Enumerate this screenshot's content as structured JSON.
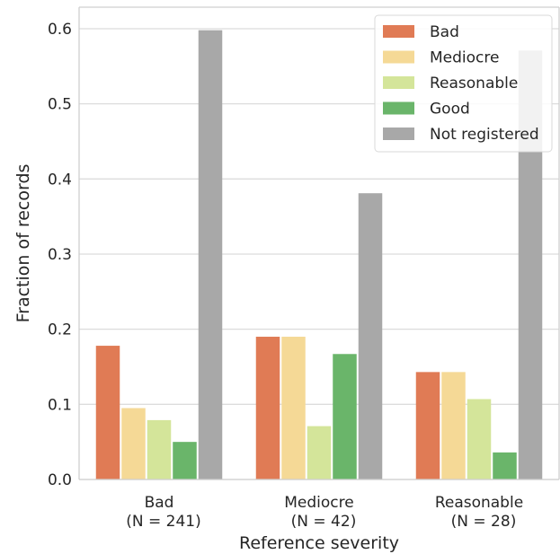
{
  "chart_data": {
    "type": "bar",
    "title": "",
    "xlabel": "Reference severity",
    "ylabel": "Fraction of records",
    "ylim": [
      0,
      0.63
    ],
    "yticks": [
      "0.0",
      "0.1",
      "0.2",
      "0.3",
      "0.4",
      "0.5",
      "0.6"
    ],
    "grid": "horizontal",
    "legend_position": "top-right",
    "categories": [
      {
        "line1": "Bad",
        "line2": "(N = 241)"
      },
      {
        "line1": "Mediocre",
        "line2": "(N = 42)"
      },
      {
        "line1": "Reasonable",
        "line2": "(N = 28)"
      }
    ],
    "series": [
      {
        "name": "Bad",
        "color": "#e07b55",
        "values": [
          0.178,
          0.19,
          0.143
        ]
      },
      {
        "name": "Mediocre",
        "color": "#f5d996",
        "values": [
          0.095,
          0.19,
          0.143
        ]
      },
      {
        "name": "Reasonable",
        "color": "#d4e59a",
        "values": [
          0.079,
          0.071,
          0.107
        ]
      },
      {
        "name": "Good",
        "color": "#6ab56a",
        "values": [
          0.05,
          0.167,
          0.036
        ]
      },
      {
        "name": "Not registered",
        "color": "#a8a8a8",
        "values": [
          0.598,
          0.381,
          0.571
        ]
      }
    ]
  }
}
